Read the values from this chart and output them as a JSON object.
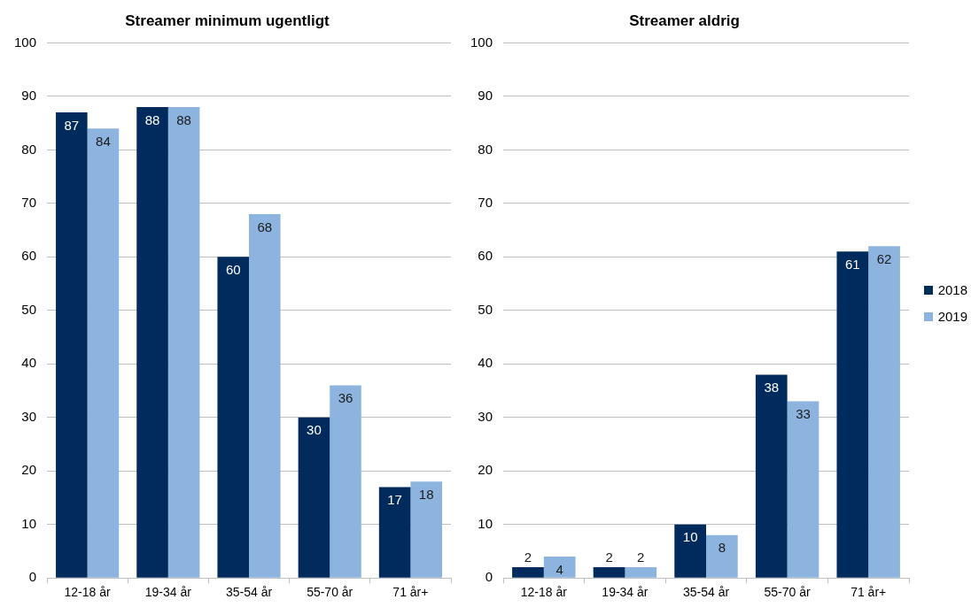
{
  "chart_data": [
    {
      "type": "bar",
      "title": "Streamer minimum ugentligt",
      "categories": [
        "12-18 år",
        "19-34 år",
        "35-54 år",
        "55-70 år",
        "71 år+"
      ],
      "series": [
        {
          "color": "#002b5c",
          "values": [
            87,
            88,
            60,
            30,
            17
          ]
        },
        {
          "color": "#8db4de",
          "values": [
            84,
            88,
            68,
            36,
            18
          ]
        }
      ],
      "ylim": [
        0,
        100
      ],
      "yticks": [
        0,
        10,
        20,
        30,
        40,
        50,
        60,
        70,
        80,
        90,
        100
      ],
      "grid": "y",
      "data_labels": true
    },
    {
      "type": "bar",
      "title": "Streamer aldrig",
      "categories": [
        "12-18 år",
        "19-34 år",
        "35-54 år",
        "55-70 år",
        "71 år+"
      ],
      "series": [
        {
          "name": "2018",
          "color": "#002b5c",
          "values": [
            2,
            2,
            10,
            38,
            61
          ]
        },
        {
          "name": "2019",
          "color": "#8db4de",
          "values": [
            4,
            2,
            8,
            33,
            62
          ]
        }
      ],
      "ylim": [
        0,
        100
      ],
      "yticks": [
        0,
        10,
        20,
        30,
        40,
        50,
        60,
        70,
        80,
        90,
        100
      ],
      "grid": "y",
      "data_labels": true,
      "legend": "right"
    }
  ]
}
